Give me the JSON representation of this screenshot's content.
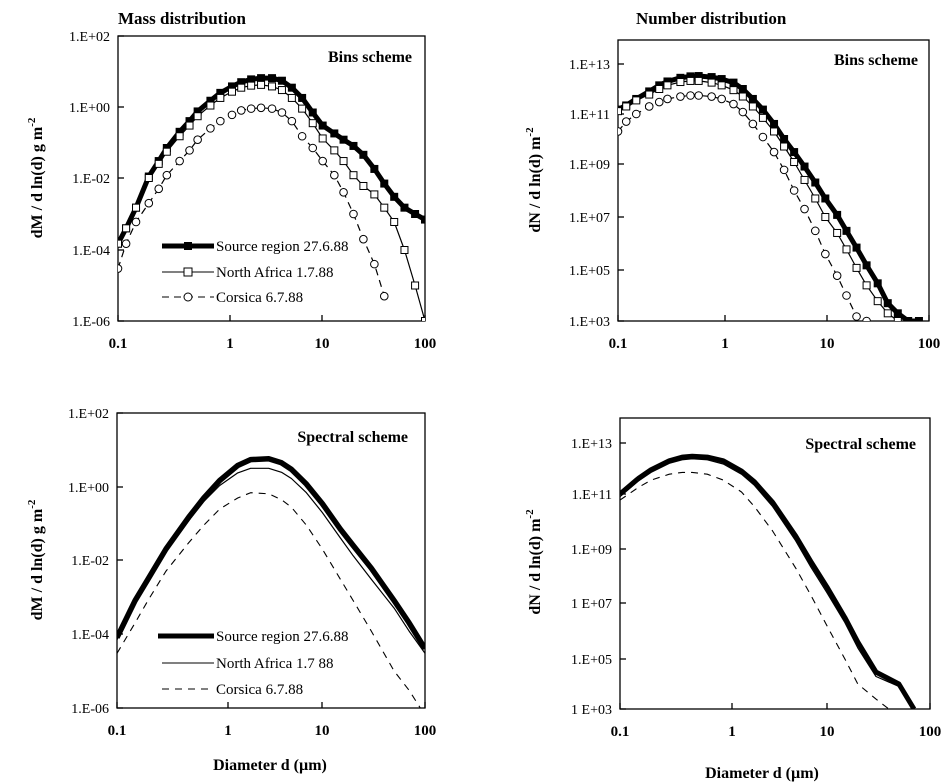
{
  "chart_data": [
    {
      "type": "line",
      "title": "Mass distribution",
      "scheme_label": "Bins scheme",
      "xlabel": "",
      "ylabel": "dM / d ln(d)  g m",
      "ylabel_sup": "-2",
      "x_scale": "log",
      "y_scale": "log",
      "xlim": [
        0.1,
        100
      ],
      "ylim": [
        1e-06,
        100
      ],
      "x_ticks": [
        "0.1",
        "1",
        "10",
        "100"
      ],
      "y_ticks": [
        "1.E-06",
        "1.E-04",
        "1.E-02",
        "1.E+00",
        "1.E+02"
      ],
      "legend": "lower-left",
      "series": [
        {
          "name": "Source region 27.6.88",
          "style": "thick-solid-filled-square",
          "x": [
            0.1,
            0.12,
            0.15,
            0.2,
            0.25,
            0.3,
            0.4,
            0.5,
            0.6,
            0.8,
            1,
            1.3,
            1.6,
            2,
            2.5,
            3.2,
            4,
            5,
            6.3,
            8,
            10,
            13,
            16,
            20,
            25,
            32,
            40,
            50,
            63,
            80,
            100
          ],
          "y": [
            0.00015,
            0.0004,
            0.0015,
            0.011,
            0.03,
            0.07,
            0.2,
            0.4,
            0.75,
            1.5,
            2.5,
            3.8,
            5,
            6,
            6.5,
            6.5,
            5.5,
            3.5,
            1.8,
            0.7,
            0.3,
            0.18,
            0.12,
            0.08,
            0.045,
            0.018,
            0.007,
            0.003,
            0.0015,
            0.001,
            0.0007
          ]
        },
        {
          "name": "North Africa 1.7.88",
          "style": "thin-solid-open-square",
          "x": [
            0.1,
            0.12,
            0.15,
            0.2,
            0.25,
            0.3,
            0.4,
            0.5,
            0.6,
            0.8,
            1,
            1.3,
            1.6,
            2,
            2.5,
            3.2,
            4,
            5,
            6.3,
            8,
            10,
            13,
            16,
            20,
            25,
            32,
            40,
            50,
            63,
            80,
            100
          ],
          "y": [
            0.00015,
            0.0004,
            0.0015,
            0.01,
            0.025,
            0.055,
            0.15,
            0.3,
            0.55,
            1.1,
            1.8,
            2.7,
            3.5,
            4,
            4.2,
            3.8,
            3,
            1.8,
            0.9,
            0.35,
            0.13,
            0.06,
            0.03,
            0.012,
            0.006,
            0.0035,
            0.0015,
            0.0006,
            0.0001,
            1e-05,
            1e-06
          ]
        },
        {
          "name": "Corsica 6.7.88",
          "style": "dashed-open-circle",
          "x": [
            0.1,
            0.12,
            0.15,
            0.2,
            0.25,
            0.3,
            0.4,
            0.5,
            0.6,
            0.8,
            1,
            1.3,
            1.6,
            2,
            2.5,
            3.2,
            4,
            5,
            6.3,
            8,
            10,
            13,
            16,
            20,
            25,
            32,
            40
          ],
          "y": [
            3e-05,
            0.00015,
            0.0006,
            0.002,
            0.005,
            0.012,
            0.03,
            0.06,
            0.12,
            0.25,
            0.4,
            0.6,
            0.8,
            0.9,
            0.95,
            0.9,
            0.7,
            0.4,
            0.15,
            0.07,
            0.03,
            0.012,
            0.004,
            0.001,
            0.0002,
            4e-05,
            5e-06
          ]
        }
      ]
    },
    {
      "type": "line",
      "title": "Number distribution",
      "scheme_label": "Bins scheme",
      "xlabel": "",
      "ylabel": "dN /  d ln(d) m",
      "ylabel_sup": "-2",
      "x_scale": "log",
      "y_scale": "log",
      "xlim": [
        0.1,
        100
      ],
      "ylim": [
        1000.0,
        100000000000000.0
      ],
      "x_ticks": [
        "0.1",
        "1",
        "10",
        "100"
      ],
      "y_ticks": [
        "1.E+03",
        "1.E+05",
        "1.E+07",
        "1.E+09",
        "1.E+11",
        "1.E+13"
      ],
      "series": [
        {
          "name": "Source region 27.6.88",
          "x": [
            0.1,
            0.12,
            0.15,
            0.2,
            0.25,
            0.3,
            0.4,
            0.5,
            0.6,
            0.8,
            1,
            1.3,
            1.6,
            2,
            2.5,
            3.2,
            4,
            5,
            6.3,
            8,
            10,
            13,
            16,
            20,
            25,
            32,
            40,
            50,
            63,
            80
          ],
          "y": [
            150000000000.0,
            220000000000.0,
            400000000000.0,
            800000000000.0,
            1400000000000.0,
            2000000000000.0,
            2800000000000.0,
            3200000000000.0,
            3300000000000.0,
            3000000000000.0,
            2500000000000.0,
            1800000000000.0,
            1000000000000.0,
            400000000000.0,
            150000000000.0,
            40000000000.0,
            10000000000.0,
            3000000000.0,
            800000000.0,
            200000000.0,
            50000000.0,
            12000000.0,
            3000000.0,
            700000.0,
            150000.0,
            30000.0,
            5000.0,
            2000.0,
            1000.0,
            1000.0
          ]
        },
        {
          "name": "North Africa 1.7.88",
          "x": [
            0.1,
            0.12,
            0.15,
            0.2,
            0.25,
            0.3,
            0.4,
            0.5,
            0.6,
            0.8,
            1,
            1.3,
            1.6,
            2,
            2.5,
            3.2,
            4,
            5,
            6.3,
            8,
            10,
            13,
            16,
            20,
            25,
            32,
            40,
            50
          ],
          "y": [
            130000000000.0,
            200000000000.0,
            350000000000.0,
            600000000000.0,
            1000000000000.0,
            1400000000000.0,
            1900000000000.0,
            2100000000000.0,
            2100000000000.0,
            1800000000000.0,
            1400000000000.0,
            900000000000.0,
            500000000000.0,
            200000000000.0,
            70000000000.0,
            20000000000.0,
            5000000000.0,
            1200000000.0,
            250000000.0,
            50000000.0,
            10000000.0,
            2500000.0,
            600000.0,
            120000.0,
            25000.0,
            6000.0,
            2000.0,
            1000.0
          ]
        },
        {
          "name": "Corsica 6.7.88",
          "x": [
            0.1,
            0.12,
            0.15,
            0.2,
            0.25,
            0.3,
            0.4,
            0.5,
            0.6,
            0.8,
            1,
            1.3,
            1.6,
            2,
            2.5,
            3.2,
            4,
            5,
            6.3,
            8,
            10,
            13,
            16,
            20,
            25
          ],
          "y": [
            20000000000.0,
            50000000000.0,
            100000000000.0,
            200000000000.0,
            300000000000.0,
            400000000000.0,
            500000000000.0,
            550000000000.0,
            550000000000.0,
            500000000000.0,
            400000000000.0,
            250000000000.0,
            120000000000.0,
            40000000000.0,
            12000000000.0,
            3000000000.0,
            600000000.0,
            100000000.0,
            20000000.0,
            3000000.0,
            400000.0,
            60000.0,
            10000.0,
            1500.0,
            1000.0
          ]
        }
      ]
    },
    {
      "type": "line",
      "title": "",
      "scheme_label": "Spectral scheme",
      "xlabel": "Diameter d (µm)",
      "ylabel": "dM / d ln(d)  g m",
      "ylabel_sup": "-2",
      "x_scale": "log",
      "y_scale": "log",
      "xlim": [
        0.1,
        100
      ],
      "ylim": [
        1e-06,
        100
      ],
      "x_ticks": [
        "0.1",
        "1",
        "10",
        "100"
      ],
      "y_ticks": [
        "1.E-06",
        "1.E-04",
        "1.E-02",
        "1.E+00",
        "1.E+02"
      ],
      "legend": "lower-left",
      "series": [
        {
          "name": "Source region 27.6.88",
          "style": "thick-solid",
          "x": [
            0.1,
            0.15,
            0.2,
            0.3,
            0.5,
            0.7,
            1,
            1.5,
            2,
            3,
            4,
            5,
            7,
            10,
            15,
            20,
            30,
            50,
            70,
            100
          ],
          "y": [
            8e-05,
            0.0008,
            0.003,
            0.02,
            0.15,
            0.5,
            1.5,
            3.8,
            5.5,
            5.8,
            4.5,
            3,
            1.2,
            0.35,
            0.07,
            0.025,
            0.006,
            0.0008,
            0.0002,
            4e-05
          ]
        },
        {
          "name": "North Africa 1.7 88",
          "style": "thin-solid",
          "x": [
            0.1,
            0.15,
            0.2,
            0.3,
            0.5,
            0.7,
            1,
            1.5,
            2,
            3,
            4,
            5,
            7,
            10,
            15,
            20,
            30,
            50,
            70,
            100
          ],
          "y": [
            7e-05,
            0.0007,
            0.0025,
            0.017,
            0.12,
            0.4,
            1.1,
            2.4,
            3.2,
            3.2,
            2.5,
            1.7,
            0.7,
            0.2,
            0.04,
            0.013,
            0.003,
            0.0005,
            0.00012,
            3e-05
          ]
        },
        {
          "name": "Corsica 6.7.88",
          "style": "dashed",
          "x": [
            0.1,
            0.15,
            0.2,
            0.3,
            0.5,
            0.7,
            1,
            1.5,
            2,
            3,
            4,
            5,
            7,
            10,
            15,
            20,
            30,
            50,
            70,
            90
          ],
          "y": [
            3e-05,
            0.0002,
            0.0008,
            0.005,
            0.03,
            0.09,
            0.25,
            0.5,
            0.7,
            0.65,
            0.45,
            0.28,
            0.09,
            0.02,
            0.003,
            0.0008,
            0.00012,
            1e-05,
            3e-06,
            1e-06
          ]
        }
      ]
    },
    {
      "type": "line",
      "title": "",
      "scheme_label": "Spectral scheme",
      "xlabel": "Diameter d (µm)",
      "ylabel": "dN /  d ln(d) m",
      "ylabel_sup": "-2",
      "x_scale": "log",
      "y_scale": "log",
      "xlim": [
        0.1,
        100
      ],
      "ylim": [
        1000.0,
        100000000000000.0
      ],
      "x_ticks": [
        "0.1",
        "1",
        "10",
        "100"
      ],
      "y_ticks": [
        "1 E+03",
        "1.E+05",
        "1 E+07",
        "1.E+09",
        "1.E+11",
        "1.E+13"
      ],
      "series": [
        {
          "name": "Source region 27.6.88",
          "x": [
            0.1,
            0.15,
            0.2,
            0.3,
            0.4,
            0.5,
            0.7,
            1,
            1.5,
            2,
            3,
            5,
            7,
            10,
            15,
            20,
            30,
            50,
            70
          ],
          "y": [
            100000000000.0,
            400000000000.0,
            900000000000.0,
            2000000000000.0,
            2800000000000.0,
            3000000000000.0,
            2800000000000.0,
            2000000000000.0,
            800000000000.0,
            300000000000.0,
            50000000000.0,
            3000000000.0,
            350000000.0,
            40000000.0,
            3000000.0,
            400000.0,
            30000.0,
            10000.0,
            1000.0
          ]
        },
        {
          "name": "North Africa 1.7 88",
          "x": [
            0.1,
            0.15,
            0.2,
            0.3,
            0.4,
            0.5,
            0.7,
            1,
            1.5,
            2,
            3,
            5,
            7,
            10,
            15,
            20,
            30,
            50,
            70
          ],
          "y": [
            80000000000.0,
            320000000000.0,
            700000000000.0,
            1600000000000.0,
            2200000000000.0,
            2400000000000.0,
            2200000000000.0,
            1500000000000.0,
            600000000000.0,
            220000000000.0,
            35000000000.0,
            2000000000.0,
            220000000.0,
            25000000.0,
            2000000.0,
            250000.0,
            20000.0,
            8000.0,
            1000.0
          ]
        },
        {
          "name": "Corsica 6.7.88",
          "x": [
            0.1,
            0.15,
            0.2,
            0.3,
            0.4,
            0.5,
            0.7,
            1,
            1.5,
            2,
            3,
            5,
            7,
            10,
            15,
            20,
            30,
            40
          ],
          "y": [
            60000000000.0,
            180000000000.0,
            350000000000.0,
            600000000000.0,
            700000000000.0,
            700000000000.0,
            600000000000.0,
            350000000000.0,
            120000000000.0,
            35000000000.0,
            4500000000.0,
            200000000.0,
            20000000.0,
            1600000.0,
            100000.0,
            10000.0,
            2500.0,
            1000.0
          ]
        }
      ]
    }
  ]
}
